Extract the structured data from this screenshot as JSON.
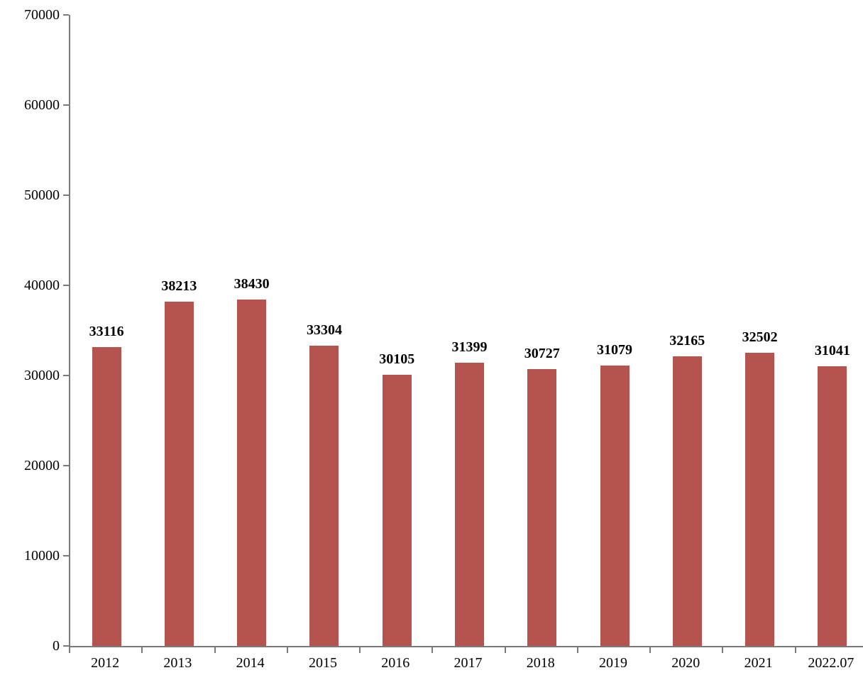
{
  "chart_data": {
    "type": "bar",
    "title": "",
    "xlabel": "",
    "ylabel": "",
    "categories": [
      "2012",
      "2013",
      "2014",
      "2015",
      "2016",
      "2017",
      "2018",
      "2019",
      "2020",
      "2021",
      "2022.07"
    ],
    "values": [
      33116,
      38213,
      38430,
      33304,
      30105,
      31399,
      30727,
      31079,
      32165,
      32502,
      31041
    ],
    "data_labels": [
      "33116",
      "38213",
      "38430",
      "33304",
      "30105",
      "31399",
      "30727",
      "31079",
      "32165",
      "32502",
      "31041"
    ],
    "ylim": [
      0,
      70000
    ],
    "ytick_step": 10000,
    "y_tick_labels": [
      "0",
      "10000",
      "20000",
      "30000",
      "40000",
      "50000",
      "60000",
      "70000"
    ],
    "grid": false,
    "legend": "none",
    "data_labels_visible": true,
    "bar_color": "#b5534f",
    "axis_color": "#7a7a7a",
    "text_color": "#000000",
    "background_color": "#ffffff"
  }
}
